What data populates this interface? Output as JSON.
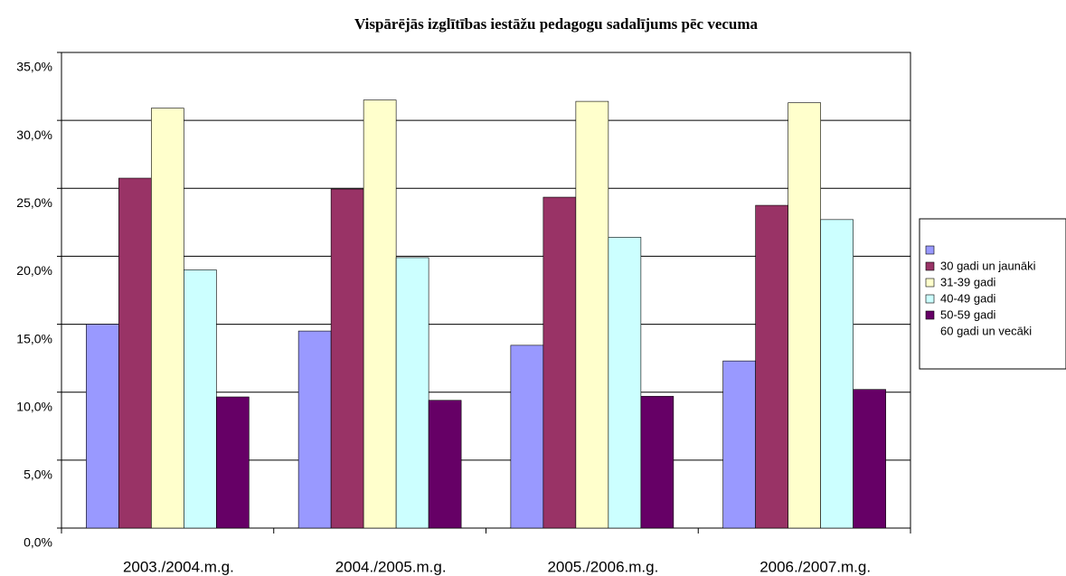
{
  "chart_data": {
    "type": "bar",
    "title": "Vispārējās izglītības iestāžu pedagogu sadalījums pēc vecuma",
    "categories": [
      "2003./2004.m.g.",
      "2004./2005.m.g.",
      "2005./2006.m.g.",
      "2006./2007.m.g."
    ],
    "series": [
      {
        "name": "30 gadi un jaunāki",
        "color": "#9999ff",
        "values": [
          15.0,
          14.5,
          13.45,
          12.3
        ]
      },
      {
        "name": "31-39 gadi",
        "color": "#993366",
        "values": [
          25.75,
          24.95,
          24.35,
          23.75
        ]
      },
      {
        "name": "40-49 gadi",
        "color": "#ffffcc",
        "values": [
          30.9,
          31.5,
          31.4,
          31.3
        ]
      },
      {
        "name": "50-59 gadi",
        "color": "#ccffff",
        "values": [
          19.0,
          19.9,
          21.4,
          22.7
        ]
      },
      {
        "name": "60 gadi un vecāki",
        "color": "#660066",
        "values": [
          9.65,
          9.4,
          9.7,
          10.2
        ]
      }
    ],
    "ylim": [
      0,
      35
    ],
    "yticks": [
      {
        "value": 0,
        "label": "0,0%"
      },
      {
        "value": 5,
        "label": "5,0%"
      },
      {
        "value": 10,
        "label": "10,0%"
      },
      {
        "value": 15,
        "label": "15,0%"
      },
      {
        "value": 20,
        "label": "20,0%"
      },
      {
        "value": 25,
        "label": "25,0%"
      },
      {
        "value": 30,
        "label": "30,0%"
      },
      {
        "value": 35,
        "label": "35,0%"
      }
    ],
    "grid": true,
    "legend": "right"
  }
}
